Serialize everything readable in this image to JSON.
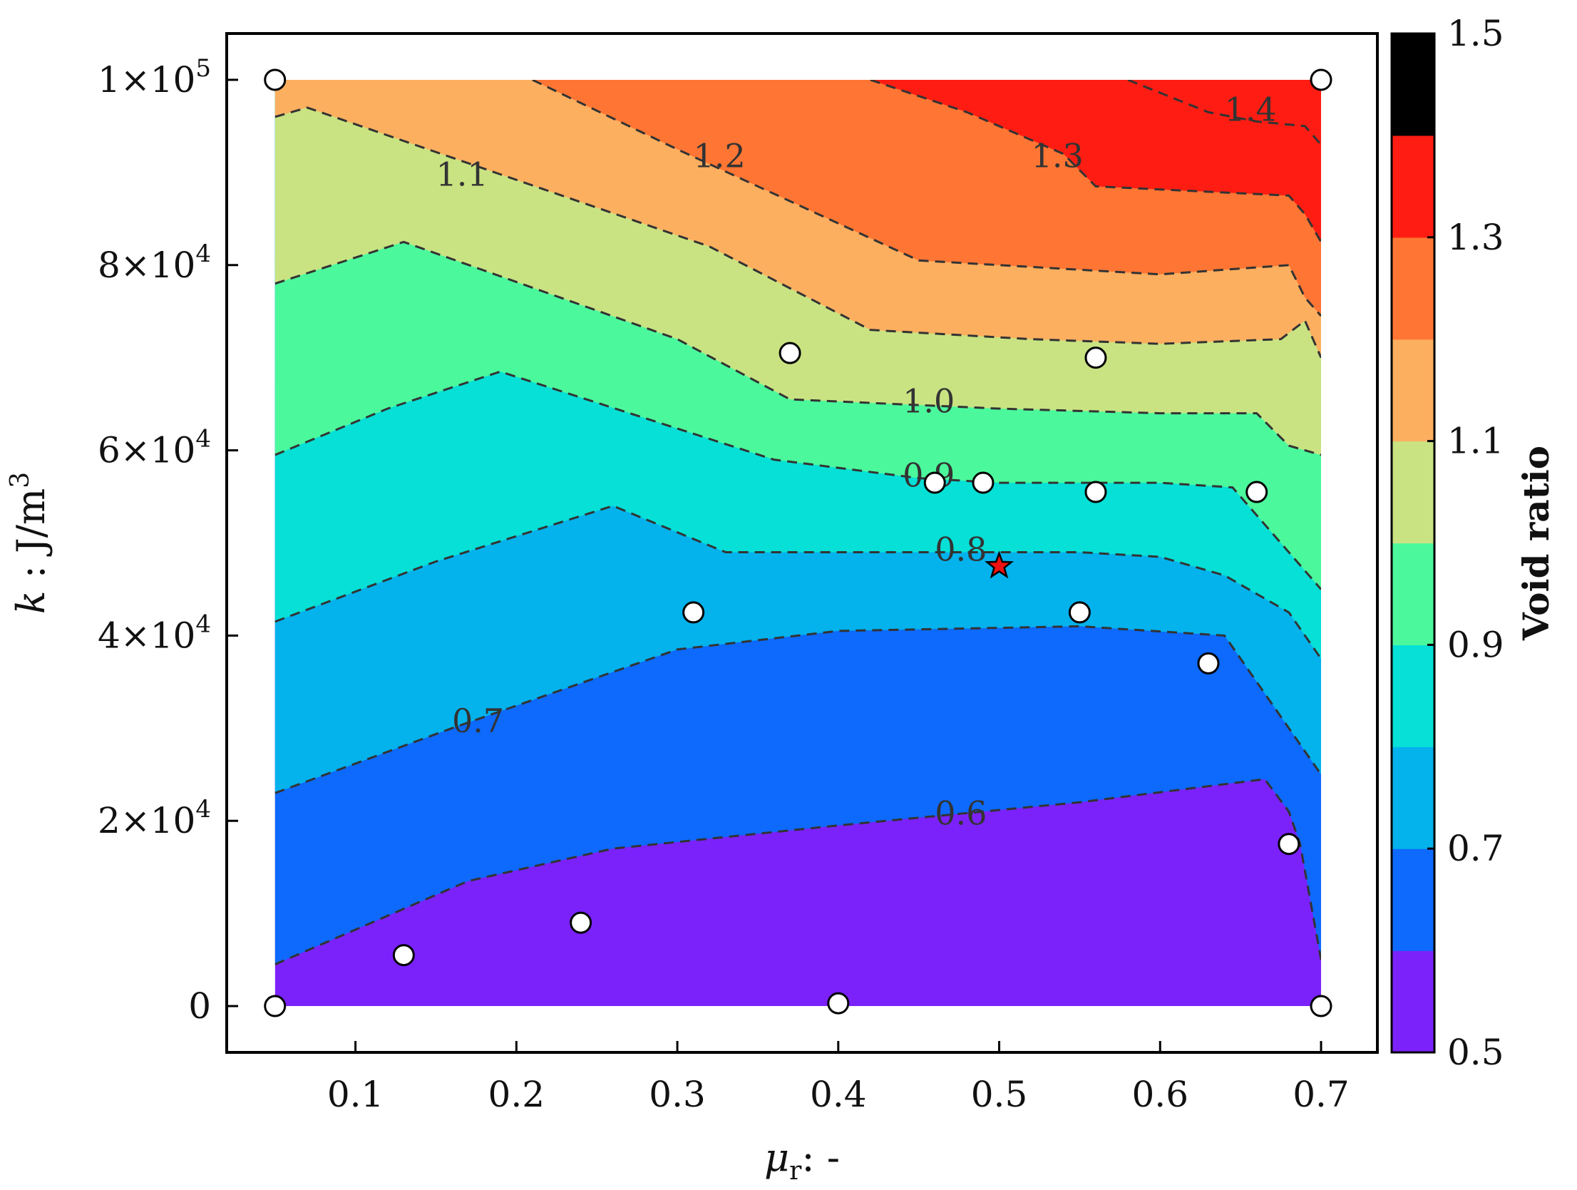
{
  "chart_data": {
    "type": "contour",
    "xlabel": "μr: -",
    "ylabel": "k : J/m3",
    "xlim": [
      0.02,
      0.735
    ],
    "ylim": [
      -5000,
      105000
    ],
    "xticks": [
      {
        "v": 0.1,
        "label": "0.1"
      },
      {
        "v": 0.2,
        "label": "0.2"
      },
      {
        "v": 0.3,
        "label": "0.3"
      },
      {
        "v": 0.4,
        "label": "0.4"
      },
      {
        "v": 0.5,
        "label": "0.5"
      },
      {
        "v": 0.6,
        "label": "0.6"
      },
      {
        "v": 0.7,
        "label": "0.7"
      }
    ],
    "yticks": [
      {
        "v": 0,
        "label": "0"
      },
      {
        "v": 20000,
        "mant": "2",
        "exp": "4"
      },
      {
        "v": 40000,
        "mant": "4",
        "exp": "4"
      },
      {
        "v": 60000,
        "mant": "6",
        "exp": "4"
      },
      {
        "v": 80000,
        "mant": "8",
        "exp": "4"
      },
      {
        "v": 100000,
        "mant": "1",
        "exp": "5"
      }
    ],
    "colorbar": {
      "title": "Void ratio",
      "min": 0.5,
      "max": 1.5,
      "levels": [
        0.5,
        0.6,
        0.7,
        0.8,
        0.9,
        1.0,
        1.1,
        1.2,
        1.3,
        1.4,
        1.5
      ],
      "colors": [
        "#7b22fb",
        "#0d6afd",
        "#04b2ec",
        "#06e0d6",
        "#4bf99c",
        "#c9e382",
        "#fdaf60",
        "#ff7634",
        "#ff1d13"
      ],
      "tick_labels": [
        {
          "v": 0.5,
          "label": "0.5"
        },
        {
          "v": 0.7,
          "label": "0.7"
        },
        {
          "v": 0.9,
          "label": "0.9"
        },
        {
          "v": 1.1,
          "label": "1.1"
        },
        {
          "v": 1.3,
          "label": "1.3"
        },
        {
          "v": 1.5,
          "label": "1.5"
        }
      ]
    },
    "domain": {
      "x": [
        0.05,
        0.7
      ],
      "y": [
        0,
        100000
      ]
    },
    "contours": [
      {
        "level": 0.6,
        "label": "0.6",
        "label_at": [
          0.46,
          20500
        ],
        "points": [
          [
            0.05,
            4500
          ],
          [
            0.17,
            13500
          ],
          [
            0.26,
            17000
          ],
          [
            0.4,
            19500
          ],
          [
            0.55,
            22000
          ],
          [
            0.665,
            24500
          ],
          [
            0.68,
            21000
          ],
          [
            0.687,
            17500
          ],
          [
            0.7,
            5000
          ]
        ]
      },
      {
        "level": 0.7,
        "label": "0.7",
        "label_at": [
          0.16,
          30500
        ],
        "points": [
          [
            0.05,
            23000
          ],
          [
            0.16,
            30000
          ],
          [
            0.3,
            38500
          ],
          [
            0.4,
            40500
          ],
          [
            0.55,
            41000
          ],
          [
            0.64,
            40000
          ],
          [
            0.68,
            30000
          ],
          [
            0.7,
            25000
          ]
        ]
      },
      {
        "level": 0.8,
        "label": "0.8",
        "label_at": [
          0.46,
          49000
        ],
        "points": [
          [
            0.05,
            41500
          ],
          [
            0.15,
            48000
          ],
          [
            0.26,
            54000
          ],
          [
            0.33,
            49000
          ],
          [
            0.46,
            49000
          ],
          [
            0.55,
            49000
          ],
          [
            0.6,
            48500
          ],
          [
            0.64,
            46500
          ],
          [
            0.68,
            42500
          ],
          [
            0.7,
            37500
          ]
        ]
      },
      {
        "level": 0.9,
        "label": "0.9",
        "label_at": [
          0.44,
          57000
        ],
        "points": [
          [
            0.05,
            59500
          ],
          [
            0.12,
            64500
          ],
          [
            0.19,
            68500
          ],
          [
            0.36,
            59000
          ],
          [
            0.45,
            57000
          ],
          [
            0.5,
            56500
          ],
          [
            0.6,
            56500
          ],
          [
            0.645,
            56000
          ],
          [
            0.7,
            45000
          ]
        ]
      },
      {
        "level": 1.0,
        "label": "1.0",
        "label_at": [
          0.44,
          65000
        ],
        "points": [
          [
            0.05,
            78000
          ],
          [
            0.13,
            82500
          ],
          [
            0.3,
            72000
          ],
          [
            0.37,
            65500
          ],
          [
            0.5,
            64500
          ],
          [
            0.6,
            64000
          ],
          [
            0.66,
            64000
          ],
          [
            0.68,
            60500
          ],
          [
            0.7,
            59500
          ]
        ]
      },
      {
        "level": 1.1,
        "label": "1.1",
        "label_at": [
          0.15,
          89500
        ],
        "points": [
          [
            0.05,
            96000
          ],
          [
            0.07,
            97000
          ],
          [
            0.32,
            82000
          ],
          [
            0.42,
            73000
          ],
          [
            0.52,
            72000
          ],
          [
            0.6,
            71500
          ],
          [
            0.675,
            72000
          ],
          [
            0.69,
            74000
          ],
          [
            0.7,
            70000
          ]
        ]
      },
      {
        "level": 1.2,
        "label": "1.2",
        "label_at": [
          0.31,
          91500
        ],
        "points": [
          [
            0.21,
            100000
          ],
          [
            0.3,
            92500
          ],
          [
            0.45,
            80500
          ],
          [
            0.6,
            79000
          ],
          [
            0.68,
            80000
          ],
          [
            0.69,
            76500
          ],
          [
            0.7,
            74500
          ]
        ]
      },
      {
        "level": 1.3,
        "label": "1.3",
        "label_at": [
          0.52,
          91500
        ],
        "points": [
          [
            0.42,
            100000
          ],
          [
            0.48,
            96500
          ],
          [
            0.54,
            92000
          ],
          [
            0.56,
            88500
          ],
          [
            0.68,
            87500
          ],
          [
            0.69,
            85500
          ],
          [
            0.7,
            82500
          ]
        ]
      },
      {
        "level": 1.4,
        "label": "1.4",
        "label_at": [
          0.64,
          96500
        ],
        "points": [
          [
            0.58,
            100000
          ],
          [
            0.63,
            96500
          ],
          [
            0.66,
            95500
          ],
          [
            0.69,
            95000
          ],
          [
            0.7,
            93000
          ]
        ]
      }
    ],
    "samples": [
      [
        0.05,
        100000
      ],
      [
        0.7,
        100000
      ],
      [
        0.37,
        70500
      ],
      [
        0.56,
        70000
      ],
      [
        0.46,
        56500
      ],
      [
        0.49,
        56500
      ],
      [
        0.56,
        55500
      ],
      [
        0.66,
        55500
      ],
      [
        0.31,
        42500
      ],
      [
        0.55,
        42500
      ],
      [
        0.63,
        37000
      ],
      [
        0.68,
        17500
      ],
      [
        0.24,
        9000
      ],
      [
        0.13,
        5500
      ],
      [
        0.05,
        0
      ],
      [
        0.4,
        300
      ],
      [
        0.7,
        0
      ]
    ],
    "best_point": [
      0.5,
      47500
    ],
    "grid": false
  }
}
